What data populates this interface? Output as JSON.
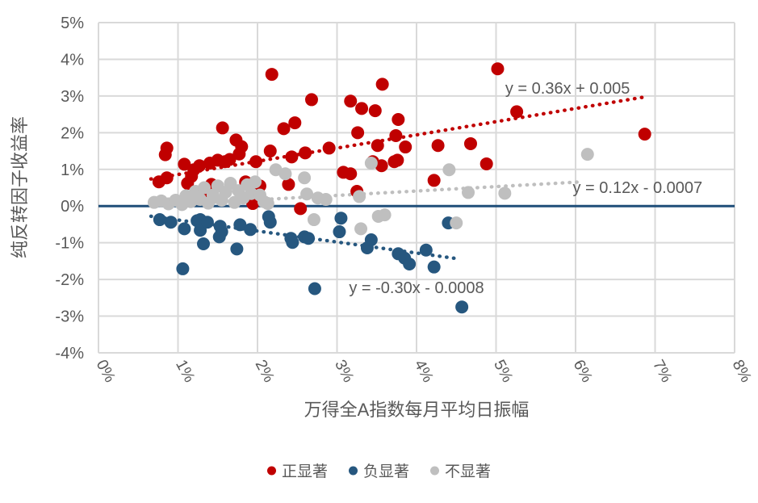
{
  "chart_data": {
    "type": "scatter",
    "title": "",
    "xlabel": "万得全A指数每月平均日振幅",
    "ylabel": "纯反转因子收益率",
    "xlim": [
      0,
      8
    ],
    "ylim": [
      -4,
      5
    ],
    "grid": true,
    "grid_color": "#D9D9D9",
    "text_color": "#595959",
    "background": "#FFFFFF",
    "x_ticks": {
      "values": [
        0,
        1,
        2,
        3,
        4,
        5,
        6,
        7,
        8
      ],
      "labels": [
        "0%",
        "1%",
        "2%",
        "3%",
        "4%",
        "5%",
        "6%",
        "7%",
        "8%"
      ]
    },
    "y_ticks": {
      "values": [
        5,
        4,
        3,
        2,
        1,
        0,
        -1,
        -2,
        -3,
        -4
      ],
      "labels": [
        "5%",
        "4%",
        "3%",
        "2%",
        "1%",
        "0%",
        "-1%",
        "-2%",
        "-3%",
        "-4%"
      ]
    },
    "zero_line": {
      "y": 0,
      "color": "#1F4E79"
    },
    "series": [
      {
        "key": "positive",
        "name": "正显著",
        "color": "#C00000",
        "points": [
          [
            0.76,
            0.66
          ],
          [
            0.84,
            1.4
          ],
          [
            0.86,
            1.58
          ],
          [
            0.86,
            0.77
          ],
          [
            1.08,
            1.14
          ],
          [
            1.12,
            0.62
          ],
          [
            1.17,
            0.81
          ],
          [
            1.2,
            0.99
          ],
          [
            1.2,
            0.29
          ],
          [
            1.27,
            1.1
          ],
          [
            1.4,
            1.17
          ],
          [
            1.4,
            0.33
          ],
          [
            1.42,
            0.59
          ],
          [
            1.5,
            1.25
          ],
          [
            1.56,
            2.13
          ],
          [
            1.59,
            1.21
          ],
          [
            1.65,
            1.27
          ],
          [
            1.73,
            1.8
          ],
          [
            1.77,
            1.42
          ],
          [
            1.8,
            1.62
          ],
          [
            1.85,
            0.66
          ],
          [
            1.94,
            0.07
          ],
          [
            1.98,
            1.21
          ],
          [
            2.0,
            0.26
          ],
          [
            2.03,
            0.55
          ],
          [
            2.16,
            1.5
          ],
          [
            2.18,
            3.59
          ],
          [
            2.33,
            2.11
          ],
          [
            2.39,
            0.59
          ],
          [
            2.43,
            1.34
          ],
          [
            2.47,
            2.27
          ],
          [
            2.54,
            -0.07
          ],
          [
            2.6,
            1.45
          ],
          [
            2.68,
            2.9
          ],
          [
            2.9,
            1.58
          ],
          [
            3.08,
            0.92
          ],
          [
            3.17,
            2.86
          ],
          [
            3.17,
            0.88
          ],
          [
            3.25,
            0.4
          ],
          [
            3.26,
            2.0
          ],
          [
            3.31,
            2.66
          ],
          [
            3.45,
            1.21
          ],
          [
            3.48,
            2.6
          ],
          [
            3.51,
            1.65
          ],
          [
            3.56,
            1.1
          ],
          [
            3.57,
            3.32
          ],
          [
            3.72,
            1.21
          ],
          [
            3.74,
            1.92
          ],
          [
            3.76,
            1.25
          ],
          [
            3.77,
            2.36
          ],
          [
            3.86,
            1.61
          ],
          [
            4.22,
            0.7
          ],
          [
            4.27,
            1.65
          ],
          [
            4.68,
            1.7
          ],
          [
            4.88,
            1.15
          ],
          [
            5.02,
            3.74
          ],
          [
            5.26,
            2.57
          ],
          [
            6.87,
            1.96
          ]
        ]
      },
      {
        "key": "negative",
        "name": "负显著",
        "color": "#26577F",
        "points": [
          [
            0.77,
            -0.37
          ],
          [
            0.91,
            -0.44
          ],
          [
            1.06,
            -1.71
          ],
          [
            1.08,
            -0.62
          ],
          [
            1.24,
            -0.4
          ],
          [
            1.28,
            -0.37
          ],
          [
            1.28,
            -0.66
          ],
          [
            1.32,
            -1.03
          ],
          [
            1.37,
            -0.44
          ],
          [
            1.52,
            -0.84
          ],
          [
            1.53,
            -0.55
          ],
          [
            1.55,
            -0.7
          ],
          [
            1.74,
            -1.17
          ],
          [
            1.78,
            -0.51
          ],
          [
            1.91,
            -0.64
          ],
          [
            2.14,
            -0.29
          ],
          [
            2.16,
            -0.44
          ],
          [
            2.42,
            -0.88
          ],
          [
            2.44,
            -0.99
          ],
          [
            2.59,
            -0.84
          ],
          [
            2.64,
            -0.88
          ],
          [
            2.72,
            -2.25
          ],
          [
            3.03,
            -0.7
          ],
          [
            3.05,
            -0.33
          ],
          [
            3.38,
            -1.14
          ],
          [
            3.43,
            -0.92
          ],
          [
            3.77,
            -1.3
          ],
          [
            3.85,
            -1.42
          ],
          [
            3.91,
            -1.58
          ],
          [
            4.12,
            -1.2
          ],
          [
            4.22,
            -1.66
          ],
          [
            4.4,
            -0.46
          ],
          [
            4.57,
            -2.75
          ]
        ]
      },
      {
        "key": "nonsignificant",
        "name": "不显著",
        "color": "#BFBFBF",
        "points": [
          [
            0.7,
            0.1
          ],
          [
            0.79,
            0.14
          ],
          [
            0.88,
            0.06
          ],
          [
            0.97,
            0.16
          ],
          [
            1.05,
            0.04
          ],
          [
            1.1,
            0.28
          ],
          [
            1.16,
            0.12
          ],
          [
            1.22,
            0.4
          ],
          [
            1.28,
            0.18
          ],
          [
            1.33,
            0.5
          ],
          [
            1.38,
            0.08
          ],
          [
            1.44,
            0.3
          ],
          [
            1.5,
            0.55
          ],
          [
            1.55,
            0.16
          ],
          [
            1.6,
            0.38
          ],
          [
            1.66,
            0.62
          ],
          [
            1.71,
            0.1
          ],
          [
            1.76,
            0.42
          ],
          [
            1.82,
            0.22
          ],
          [
            1.87,
            0.58
          ],
          [
            1.92,
            0.34
          ],
          [
            1.97,
            0.66
          ],
          [
            2.03,
            0.3
          ],
          [
            2.08,
            0.12
          ],
          [
            2.13,
            0.07
          ],
          [
            2.23,
            0.99
          ],
          [
            2.35,
            0.88
          ],
          [
            2.59,
            0.77
          ],
          [
            2.62,
            0.33
          ],
          [
            2.71,
            -0.37
          ],
          [
            2.76,
            0.22
          ],
          [
            2.86,
            0.18
          ],
          [
            3.28,
            0.26
          ],
          [
            3.3,
            -0.62
          ],
          [
            3.43,
            1.17
          ],
          [
            3.52,
            -0.28
          ],
          [
            3.6,
            -0.24
          ],
          [
            4.41,
            0.99
          ],
          [
            4.5,
            -0.46
          ],
          [
            4.65,
            0.37
          ],
          [
            5.11,
            0.35
          ],
          [
            6.15,
            1.41
          ]
        ]
      }
    ],
    "trendlines": [
      {
        "for": "positive",
        "equation": "y = 0.36x + 0.005",
        "slope": 0.36,
        "intercept_pct": 0.5,
        "x_range": [
          0.66,
          6.84
        ],
        "color": "#C00000",
        "label_pos": [
          5.9,
          3.06
        ]
      },
      {
        "for": "nonsignificant",
        "equation": "y = 0.12x - 0.0007",
        "slope": 0.12,
        "intercept_pct": -0.07,
        "x_range": [
          0.66,
          6.07
        ],
        "color": "#BFBFBF",
        "label_pos": [
          6.78,
          0.36
        ]
      },
      {
        "for": "negative",
        "equation": "y = -0.30x - 0.0008",
        "slope": -0.3,
        "intercept_pct": -0.08,
        "x_range": [
          0.66,
          4.52
        ],
        "color": "#26577F",
        "label_pos": [
          4.0,
          -2.37
        ]
      }
    ],
    "legend": {
      "position": "bottom",
      "items": [
        "正显著",
        "负显著",
        "不显著"
      ]
    }
  }
}
